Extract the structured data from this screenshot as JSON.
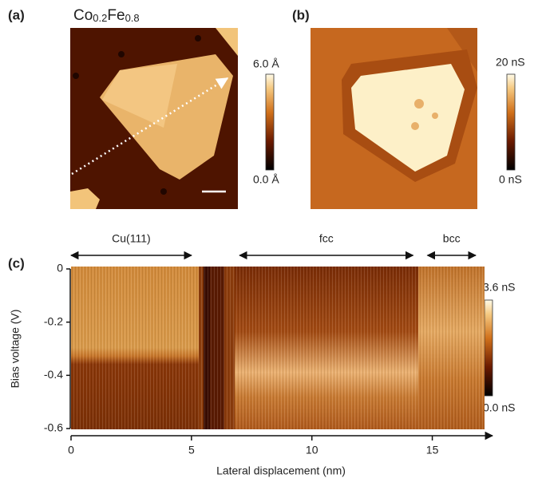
{
  "panels": [
    {
      "label": "(a)",
      "title_parts": [
        "Co",
        "0.2",
        "Fe",
        "0.8"
      ],
      "colorbar": {
        "max_label": "6.0 Å",
        "min_label": "0.0 Å"
      }
    },
    {
      "label": "(b)",
      "colorbar": {
        "max_label": "20 nS",
        "min_label": "0 nS"
      }
    }
  ],
  "chart_data": {
    "type": "heatmap",
    "label": "(c)",
    "x_label": "Lateral displacement (nm)",
    "y_label": "Bias voltage (V)",
    "xlim": [
      0,
      17.5
    ],
    "ylim": [
      -0.6,
      0
    ],
    "xticks": [
      0,
      5,
      10,
      15
    ],
    "yticks": [
      0,
      -0.2,
      -0.4,
      -0.6
    ],
    "annotations": [
      {
        "text": "Cu(111)",
        "x": [
          0,
          5
        ]
      },
      {
        "text": "fcc",
        "x": [
          7,
          14.2
        ]
      },
      {
        "text": "bcc",
        "x": [
          14.8,
          16.8
        ]
      }
    ],
    "colorbar": {
      "max_label": "3.6 nS",
      "min_label": "0.0 nS"
    }
  }
}
